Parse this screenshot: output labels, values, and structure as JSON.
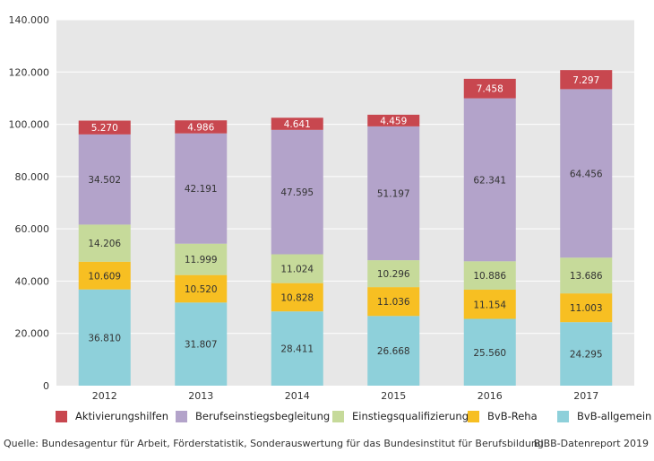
{
  "chart_data": {
    "type": "bar",
    "stacked": true,
    "categories": [
      "2012",
      "2013",
      "2014",
      "2015",
      "2016",
      "2017"
    ],
    "ylim": [
      0,
      140000
    ],
    "yticks": [
      0,
      20000,
      40000,
      60000,
      80000,
      100000,
      120000,
      140000
    ],
    "ytick_labels": [
      "0",
      "20.000",
      "40.000",
      "60.000",
      "80.000",
      "100.000",
      "120.000",
      "140.000"
    ],
    "grid": true,
    "legend_position": "bottom",
    "series": [
      {
        "name": "BvB-allgemein",
        "color": "#8ed0da",
        "label_color": "#333333",
        "values": [
          36810,
          31807,
          28411,
          26668,
          25560,
          24295
        ],
        "labels": [
          "36.810",
          "31.807",
          "28.411",
          "26.668",
          "25.560",
          "24.295"
        ]
      },
      {
        "name": "BvB-Reha",
        "color": "#f7bf22",
        "label_color": "#333333",
        "values": [
          10609,
          10520,
          10828,
          11036,
          11154,
          11003
        ],
        "labels": [
          "10.609",
          "10.520",
          "10.828",
          "11.036",
          "11.154",
          "11.003"
        ]
      },
      {
        "name": "Einstiegsqualifizierung",
        "color": "#c6da9a",
        "label_color": "#333333",
        "values": [
          14206,
          11999,
          11024,
          10296,
          10886,
          13686
        ],
        "labels": [
          "14.206",
          "11.999",
          "11.024",
          "10.296",
          "10.886",
          "13.686"
        ]
      },
      {
        "name": "Berufseinstiegsbegleitung",
        "color": "#b3a3ca",
        "label_color": "#333333",
        "values": [
          34502,
          42191,
          47595,
          51197,
          62341,
          64456
        ],
        "labels": [
          "34.502",
          "42.191",
          "47.595",
          "51.197",
          "62.341",
          "64.456"
        ]
      },
      {
        "name": "Aktivierungshilfen",
        "color": "#c8474f",
        "label_color": "#ffffff",
        "values": [
          5270,
          4986,
          4641,
          4459,
          7458,
          7297
        ],
        "labels": [
          "5.270",
          "4.986",
          "4.641",
          "4.459",
          "7.458",
          "7.297"
        ]
      }
    ],
    "legend_order": [
      "Aktivierungshilfen",
      "Berufseinstiegsbegleitung",
      "Einstiegsqualifizierung",
      "BvB-Reha",
      "BvB-allgemein"
    ]
  },
  "footer": {
    "source": "Quelle: Bundesagentur für Arbeit, Förderstatistik, Sonderauswertung für das Bundesinstitut für Berufsbildung",
    "credit": "BIBB-Datenreport 2019"
  }
}
